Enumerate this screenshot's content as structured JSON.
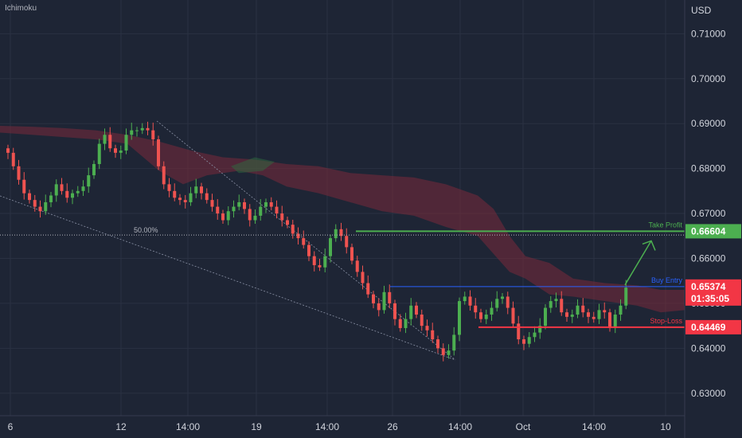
{
  "indicator_label": "Ichimoku",
  "currency_label": "USD",
  "colors": {
    "background": "#1e2535",
    "grid": "#2a3142",
    "up_candle": "#26a69a",
    "up_candle_bright": "#4caf50",
    "down_candle": "#ef5350",
    "cloud_bearish": "#7a2a3a",
    "cloud_bullish": "#2e6b40",
    "take_profit": "#4caf50",
    "buy_entry": "#2962ff",
    "stop_loss": "#f23645",
    "text": "#d1d4dc"
  },
  "chart_data": {
    "type": "candlestick",
    "title": "",
    "ylim": [
      0.625,
      0.7175
    ],
    "y_ticks": [
      "0.71000",
      "0.70000",
      "0.69000",
      "0.68000",
      "0.67000",
      "0.66000",
      "0.65000",
      "0.64000",
      "0.63000"
    ],
    "x_ticks": [
      "6",
      "12",
      "14:00",
      "19",
      "14:00",
      "26",
      "14:00",
      "Oct",
      "14:00",
      "10"
    ],
    "levels": {
      "take_profit": {
        "label": "Take Profit",
        "value": 0.66604,
        "badge": "0.66604"
      },
      "buy_entry": {
        "label": "Buy Entry",
        "value": 0.65374,
        "badge": "0.65374",
        "countdown": "01:35:05"
      },
      "stop_loss": {
        "label": "Stop-Loss",
        "value": 0.64469,
        "badge": "0.64469"
      },
      "fib_50": {
        "label": "50.00%",
        "value": 0.6652
      }
    },
    "close_series": [
      0.6835,
      0.6805,
      0.6775,
      0.6745,
      0.673,
      0.6715,
      0.6705,
      0.6725,
      0.674,
      0.6765,
      0.675,
      0.6735,
      0.6745,
      0.675,
      0.676,
      0.6785,
      0.681,
      0.6855,
      0.6875,
      0.6845,
      0.6835,
      0.684,
      0.6875,
      0.6885,
      0.6885,
      0.689,
      0.6885,
      0.6865,
      0.6805,
      0.6765,
      0.675,
      0.6735,
      0.673,
      0.6725,
      0.6745,
      0.676,
      0.6745,
      0.673,
      0.6715,
      0.67,
      0.6685,
      0.6705,
      0.6715,
      0.6725,
      0.671,
      0.6685,
      0.6695,
      0.6715,
      0.6725,
      0.6715,
      0.67,
      0.6685,
      0.6675,
      0.6655,
      0.6645,
      0.663,
      0.6605,
      0.6585,
      0.658,
      0.6605,
      0.6645,
      0.6665,
      0.665,
      0.6625,
      0.6595,
      0.657,
      0.6545,
      0.652,
      0.65,
      0.6485,
      0.6525,
      0.65,
      0.6465,
      0.6445,
      0.6465,
      0.6495,
      0.6475,
      0.645,
      0.644,
      0.642,
      0.64,
      0.6385,
      0.6395,
      0.643,
      0.6505,
      0.6515,
      0.6495,
      0.648,
      0.6465,
      0.6475,
      0.649,
      0.651,
      0.6515,
      0.649,
      0.6455,
      0.642,
      0.641,
      0.6425,
      0.6435,
      0.645,
      0.649,
      0.6505,
      0.651,
      0.648,
      0.647,
      0.6475,
      0.6495,
      0.648,
      0.647,
      0.6465,
      0.6485,
      0.648,
      0.6445,
      0.6475,
      0.6495,
      0.6535
    ],
    "candle_count": 116
  }
}
